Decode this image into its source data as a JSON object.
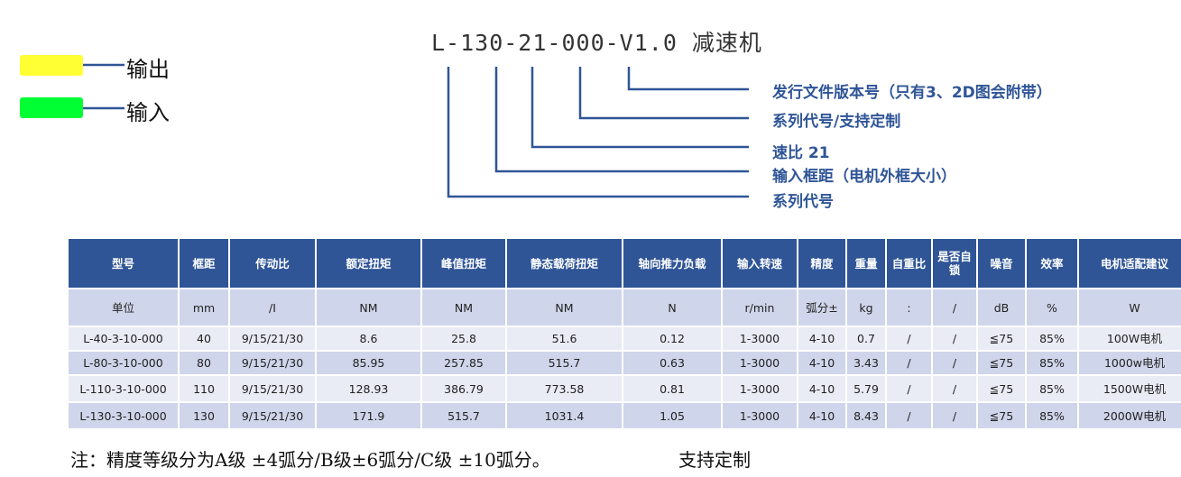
{
  "legend": [
    {
      "label": "输出",
      "color": "#ffff33"
    },
    {
      "label": "输入",
      "color": "#00ff33"
    }
  ],
  "title": "L-130-21-000-V1.0 减速机",
  "annotations": [
    "发行文件版本号（只有3、2D图会附带）",
    "系列代号/支持定制",
    "速比 21",
    "输入框距（电机外框大小）",
    "系列代号"
  ],
  "table": {
    "header": [
      "型号",
      "框距",
      "传动比",
      "额定扭矩",
      "峰值扭矩",
      "静态载荷扭矩",
      "轴向推力负载",
      "输入转速",
      "精度",
      "重量",
      "自重比",
      "是否自锁",
      "噪音",
      "效率",
      "电机适配建议"
    ],
    "units": [
      "单位",
      "mm",
      "/I",
      "NM",
      "NM",
      "NM",
      "N",
      "r/min",
      "弧分±",
      "kg",
      ":",
      "/",
      "dB",
      "%",
      "W"
    ],
    "rows": [
      [
        "L-40-3-10-000",
        "40",
        "9/15/21/30",
        "8.6",
        "25.8",
        "51.6",
        "0.12",
        "1-3000",
        "4-10",
        "0.7",
        "/",
        "/",
        "≦75",
        "85%",
        "100W电机"
      ],
      [
        "L-80-3-10-000",
        "80",
        "9/15/21/30",
        "85.95",
        "257.85",
        "515.7",
        "0.63",
        "1-3000",
        "4-10",
        "3.43",
        "/",
        "/",
        "≦75",
        "85%",
        "1000w电机"
      ],
      [
        "L-110-3-10-000",
        "110",
        "9/15/21/30",
        "128.93",
        "386.79",
        "773.58",
        "0.81",
        "1-3000",
        "4-10",
        "5.79",
        "/",
        "/",
        "≦75",
        "85%",
        "1500W电机"
      ],
      [
        "L-130-3-10-000",
        "130",
        "9/15/21/30",
        "171.9",
        "515.7",
        "1031.4",
        "1.05",
        "1-3000",
        "4-10",
        "8.43",
        "/",
        "/",
        "≦75",
        "85%",
        "2000W电机"
      ]
    ]
  },
  "footer": {
    "note": "注：精度等级分为A级 ±4弧分/B级±6弧分/C级 ±10弧分。",
    "extra": "支持定制"
  }
}
